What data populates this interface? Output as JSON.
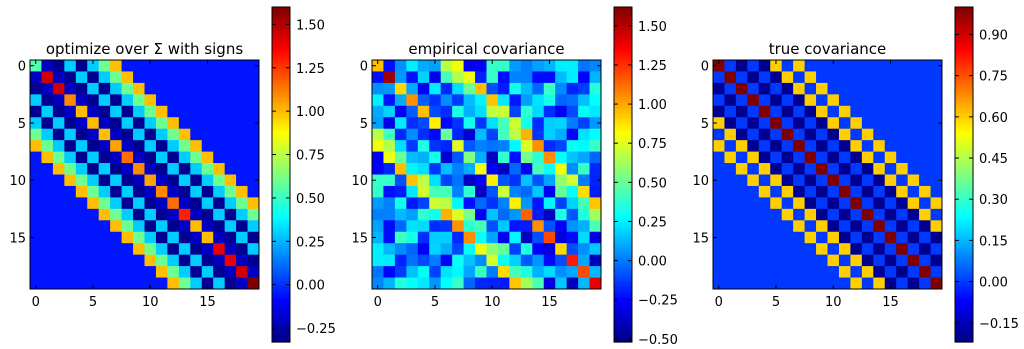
{
  "chart_data": [
    {
      "type": "heatmap",
      "title": "optimize over Σ with signs",
      "size": 20,
      "x_ticks": [
        0,
        5,
        10,
        15
      ],
      "y_ticks": [
        0,
        5,
        10,
        15
      ],
      "colorbar": {
        "range": [
          -0.33,
          1.6
        ],
        "ticks": [
          -0.25,
          0.0,
          0.25,
          0.5,
          0.75,
          1.0,
          1.25,
          1.5
        ],
        "tick_labels": [
          "−0.25",
          "0.00",
          "0.25",
          "0.50",
          "0.75",
          "1.00",
          "1.25",
          "1.50"
        ]
      },
      "pattern": {
        "diagonal": [
          0.55,
          1.45,
          1.45,
          1.1,
          1.0,
          1.0,
          1.0,
          1.05,
          1.15,
          1.1,
          1.05,
          1.1,
          1.15,
          1.3,
          1.0,
          1.0,
          1.4,
          1.4,
          1.45,
          1.6
        ],
        "band_offsets": [
          1,
          2,
          3,
          4,
          5,
          6,
          7
        ],
        "band_values": [
          -0.2,
          -0.3,
          0.3,
          -0.3,
          0.3,
          0.6,
          1.0
        ],
        "background": -0.05
      },
      "colormap": "jet"
    },
    {
      "type": "heatmap",
      "title": "empirical covariance",
      "size": 20,
      "x_ticks": [
        0,
        5,
        10,
        15
      ],
      "y_ticks": [
        0,
        5,
        10,
        15
      ],
      "colorbar": {
        "range": [
          -0.52,
          1.62
        ],
        "ticks": [
          -0.5,
          -0.25,
          0.0,
          0.25,
          0.5,
          0.75,
          1.0,
          1.25,
          1.5
        ],
        "tick_labels": [
          "−0.50",
          "−0.25",
          "0.00",
          "0.25",
          "0.50",
          "0.75",
          "1.00",
          "1.25",
          "1.50"
        ]
      },
      "pattern": {
        "diagonal": [
          0.95,
          1.55,
          0.9,
          1.05,
          0.95,
          0.85,
          0.5,
          0.75,
          0.55,
          0.8,
          0.85,
          0.7,
          0.85,
          1.15,
          1.05,
          1.2,
          0.9,
          1.3,
          1.2,
          1.4
        ],
        "band_offsets": [
          1,
          2,
          3,
          4,
          5,
          6,
          7
        ],
        "band_values": [
          -0.1,
          -0.15,
          0.2,
          -0.1,
          0.3,
          0.5,
          0.85
        ],
        "background": 0.05,
        "noise": 0.4,
        "seed": 7
      },
      "colormap": "jet"
    },
    {
      "type": "heatmap",
      "title": "true covariance",
      "size": 20,
      "x_ticks": [
        0,
        5,
        10,
        15
      ],
      "y_ticks": [
        0,
        5,
        10,
        15
      ],
      "colorbar": {
        "range": [
          -0.22,
          1.0
        ],
        "ticks": [
          -0.15,
          0.0,
          0.15,
          0.3,
          0.45,
          0.6,
          0.75,
          0.9
        ],
        "tick_labels": [
          "−0.15",
          "0.00",
          "0.15",
          "0.30",
          "0.45",
          "0.60",
          "0.75",
          "0.90"
        ]
      },
      "pattern": {
        "diagonal": [
          1.0,
          1.0,
          1.0,
          1.0,
          1.0,
          1.0,
          1.0,
          1.0,
          1.0,
          1.0,
          1.0,
          1.0,
          1.0,
          1.0,
          1.0,
          1.0,
          1.0,
          1.0,
          1.0,
          1.0
        ],
        "band_offsets": [
          1,
          2,
          3,
          4,
          5,
          6,
          7
        ],
        "band_values": [
          0.0,
          -0.2,
          0.0,
          -0.2,
          0.6,
          0.0,
          0.6
        ],
        "background": 0.0
      },
      "colormap": "jet"
    }
  ]
}
